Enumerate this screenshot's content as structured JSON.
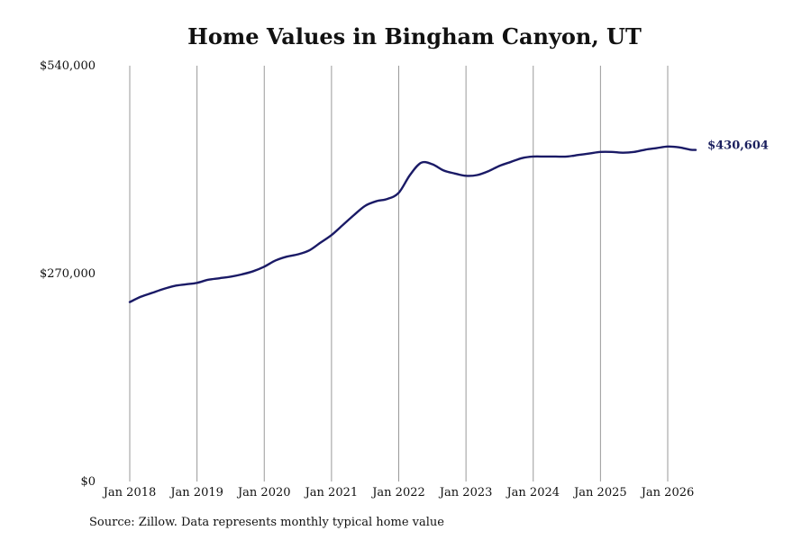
{
  "chart_data": {
    "type": "line",
    "title": "Home Values in Bingham Canyon, UT",
    "xlabel": "",
    "ylabel": "",
    "ylim": [
      0,
      540000
    ],
    "y_ticks": [
      0,
      270000,
      540000
    ],
    "y_tick_labels": [
      "$0",
      "$270,000",
      "$540,000"
    ],
    "x_ticks": [
      "2018-01",
      "2019-01",
      "2020-01",
      "2021-01",
      "2022-01",
      "2023-01",
      "2024-01",
      "2025-01",
      "2026-01"
    ],
    "x_tick_labels": [
      "Jan 2018",
      "Jan 2019",
      "Jan 2020",
      "Jan 2021",
      "Jan 2022",
      "Jan 2023",
      "Jan 2024",
      "Jan 2025",
      "Jan 2026"
    ],
    "x_range": [
      "2018-01",
      "2026-06"
    ],
    "grid": "vertical",
    "line_color": "#1a1a66",
    "series": [
      {
        "name": "",
        "x": [
          "2018-01",
          "2018-03",
          "2018-05",
          "2018-07",
          "2018-09",
          "2018-11",
          "2019-01",
          "2019-03",
          "2019-05",
          "2019-07",
          "2019-09",
          "2019-11",
          "2020-01",
          "2020-03",
          "2020-05",
          "2020-07",
          "2020-09",
          "2020-11",
          "2021-01",
          "2021-03",
          "2021-05",
          "2021-07",
          "2021-09",
          "2021-11",
          "2022-01",
          "2022-03",
          "2022-05",
          "2022-07",
          "2022-09",
          "2022-11",
          "2023-01",
          "2023-03",
          "2023-05",
          "2023-07",
          "2023-09",
          "2023-11",
          "2024-01",
          "2024-03",
          "2024-05",
          "2024-07",
          "2024-09",
          "2024-11",
          "2025-01",
          "2025-03",
          "2025-05",
          "2025-07",
          "2025-09",
          "2025-11",
          "2026-01",
          "2026-03",
          "2026-05",
          "2026-06"
        ],
        "values": [
          233000,
          240000,
          245000,
          250000,
          254000,
          256000,
          258000,
          262000,
          264000,
          266000,
          269000,
          273000,
          279000,
          287000,
          292000,
          295000,
          300000,
          310000,
          320000,
          333000,
          346000,
          358000,
          364000,
          367000,
          375000,
          398000,
          414000,
          412000,
          404000,
          400000,
          397000,
          398000,
          403000,
          410000,
          415000,
          420000,
          422000,
          422000,
          422000,
          422000,
          424000,
          426000,
          428000,
          428000,
          427000,
          428000,
          431000,
          433000,
          435000,
          434000,
          431000,
          430604
        ]
      }
    ],
    "end_label": "$430,604"
  },
  "source_text": "Source: Zillow. Data represents monthly typical home value"
}
